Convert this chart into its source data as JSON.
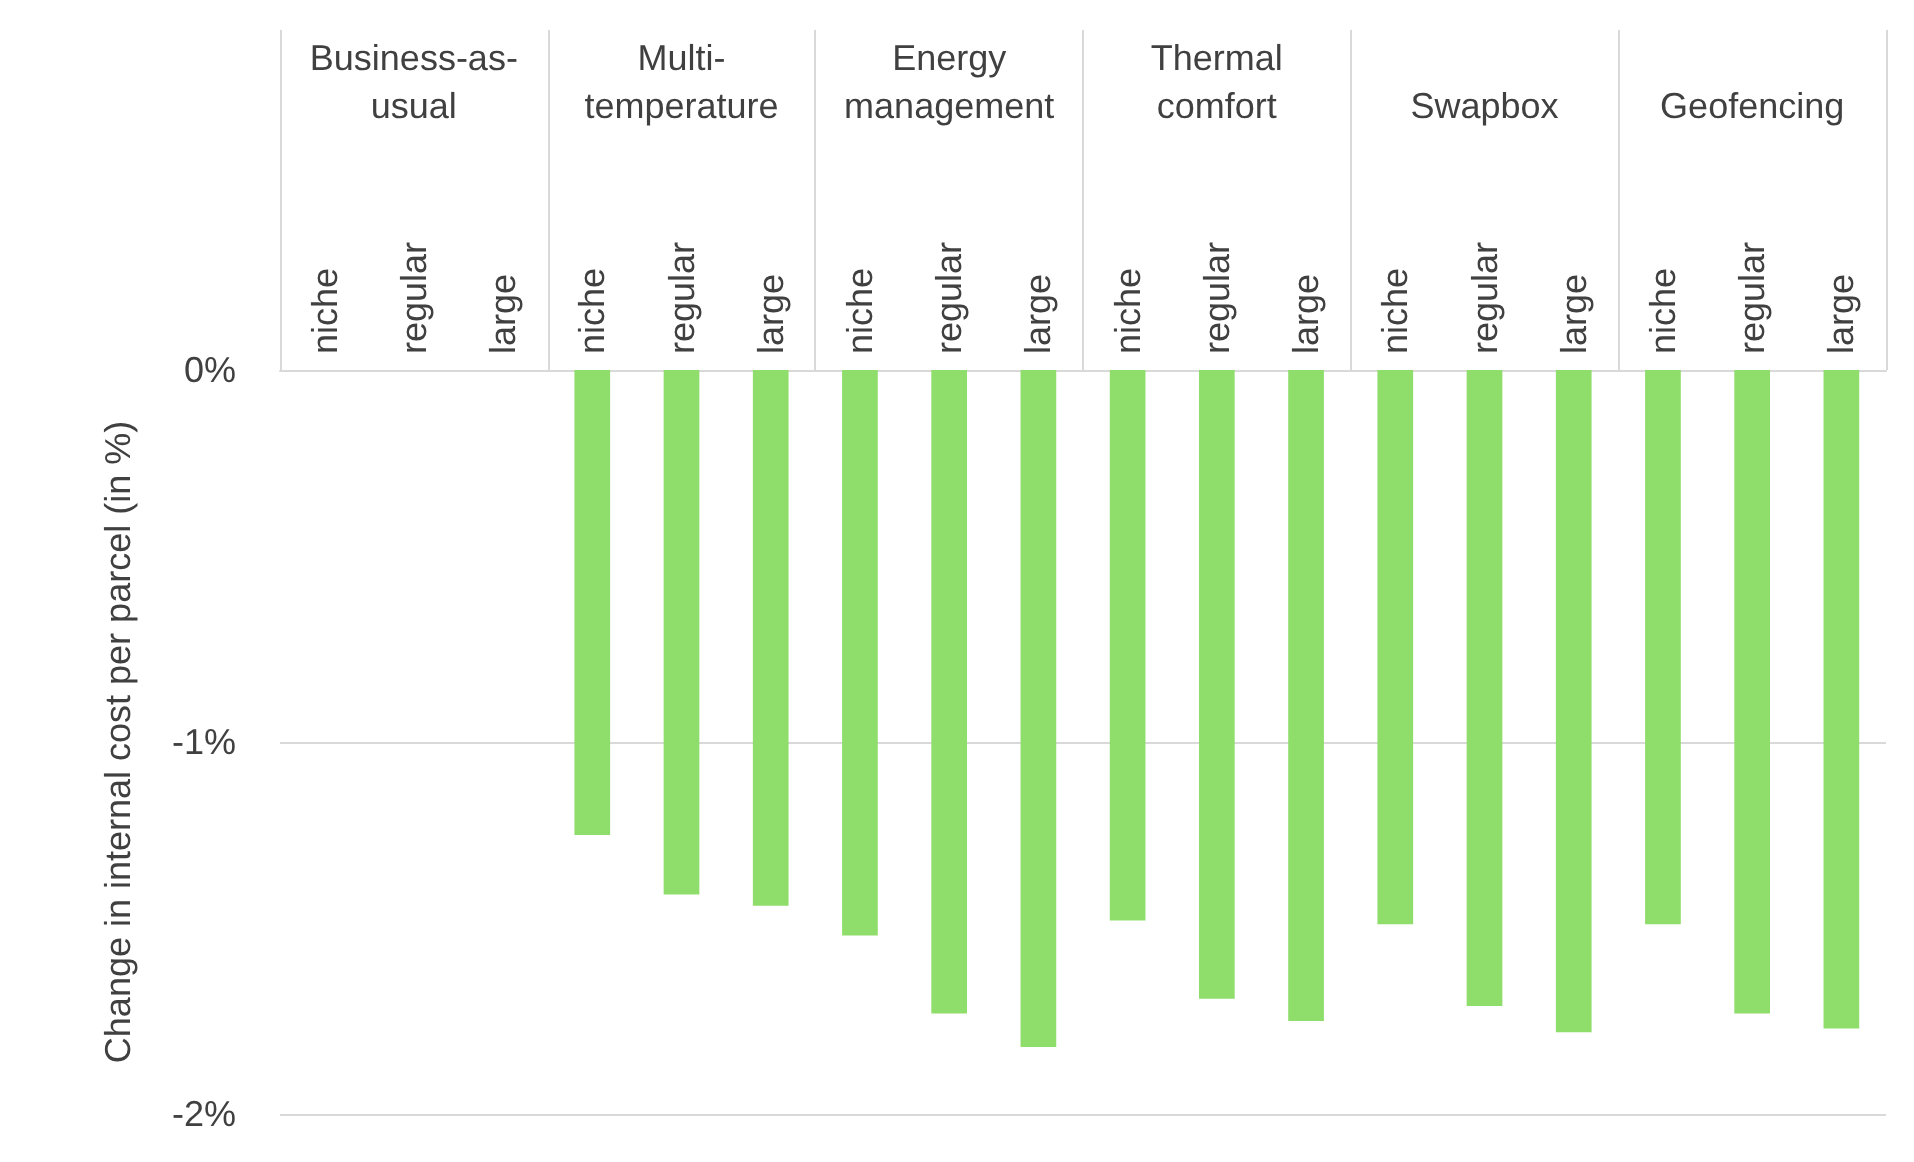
{
  "chart_data": {
    "type": "bar",
    "ylabel": "Change in internal cost per parcel (in %)",
    "annotations": [
      "Business-as-usual",
      "Multi-temperature",
      "Energy management",
      "Thermal comfort",
      "Swapbox",
      "Geofencing"
    ],
    "categories": [
      "niche",
      "regular",
      "large",
      "niche",
      "regular",
      "large",
      "niche",
      "regular",
      "large",
      "niche",
      "regular",
      "large",
      "niche",
      "regular",
      "large",
      "niche",
      "regular",
      "large"
    ],
    "values": [
      0,
      0,
      0,
      -1.25,
      -1.41,
      -1.44,
      -1.52,
      -1.73,
      -1.82,
      -1.48,
      -1.69,
      -1.75,
      -1.49,
      -1.71,
      -1.78,
      -1.49,
      -1.73,
      -1.77
    ],
    "color": "#8fdd6a",
    "ylim": [
      -2,
      0
    ],
    "yticks": [
      {
        "value": 0,
        "label": "0%"
      },
      {
        "value": -1,
        "label": "-1%"
      },
      {
        "value": -2,
        "label": "-2%"
      }
    ],
    "grid": "y"
  }
}
